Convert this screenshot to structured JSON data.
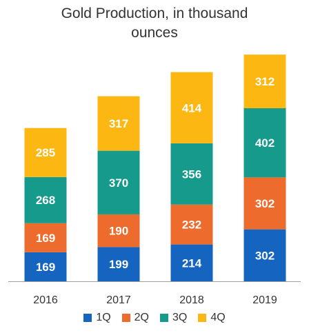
{
  "title_line1": "Gold Production, in thousand",
  "title_line2": "ounces",
  "chart_data": {
    "type": "bar",
    "stacked": true,
    "title": "Gold Production, in thousand ounces",
    "categories": [
      "2016",
      "2017",
      "2018",
      "2019"
    ],
    "series": [
      {
        "name": "1Q",
        "color": "#1565C0",
        "values": [
          169,
          199,
          214,
          302
        ]
      },
      {
        "name": "2Q",
        "color": "#ED6C2D",
        "values": [
          169,
          190,
          232,
          302
        ]
      },
      {
        "name": "3Q",
        "color": "#159A8C",
        "values": [
          268,
          370,
          356,
          402
        ]
      },
      {
        "name": "4Q",
        "color": "#FDB713",
        "values": [
          285,
          317,
          414,
          312
        ]
      }
    ],
    "legend_position": "bottom",
    "data_labels": true,
    "grid": false
  }
}
